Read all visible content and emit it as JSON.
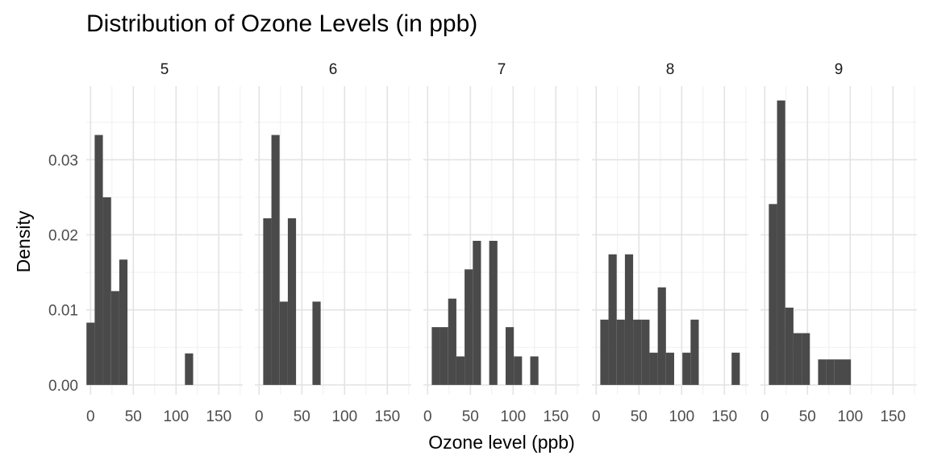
{
  "chart_data": {
    "type": "bar",
    "title": "Distribution of Ozone Levels (in ppb)",
    "xlabel": "Ozone level (ppb)",
    "ylabel": "Density",
    "xlim": [
      -5,
      178
    ],
    "ylim": [
      -0.0013,
      0.0398
    ],
    "x_ticks": [
      0,
      50,
      100,
      150
    ],
    "y_ticks": [
      0.0,
      0.01,
      0.02,
      0.03
    ],
    "y_tick_labels": [
      "0.00",
      "0.01",
      "0.02",
      "0.03"
    ],
    "bin_width": 9.6,
    "grid": true,
    "bar_color": "#4a4a4a",
    "panels": [
      {
        "label": "5",
        "bins": [
          {
            "x0": -4.8,
            "density": 0.0083
          },
          {
            "x0": 4.8,
            "density": 0.0333
          },
          {
            "x0": 14.4,
            "density": 0.025
          },
          {
            "x0": 24.0,
            "density": 0.0125
          },
          {
            "x0": 33.6,
            "density": 0.0167
          },
          {
            "x0": 110.4,
            "density": 0.0042
          }
        ]
      },
      {
        "label": "6",
        "bins": [
          {
            "x0": 4.8,
            "density": 0.0222
          },
          {
            "x0": 14.4,
            "density": 0.0333
          },
          {
            "x0": 24.0,
            "density": 0.0111
          },
          {
            "x0": 33.6,
            "density": 0.0222
          },
          {
            "x0": 62.4,
            "density": 0.0111
          }
        ]
      },
      {
        "label": "7",
        "bins": [
          {
            "x0": 4.8,
            "density": 0.0077
          },
          {
            "x0": 14.4,
            "density": 0.0077
          },
          {
            "x0": 24.0,
            "density": 0.0115
          },
          {
            "x0": 33.6,
            "density": 0.0038
          },
          {
            "x0": 43.2,
            "density": 0.0154
          },
          {
            "x0": 52.8,
            "density": 0.0192
          },
          {
            "x0": 72.0,
            "density": 0.0192
          },
          {
            "x0": 91.2,
            "density": 0.0077
          },
          {
            "x0": 100.8,
            "density": 0.0038
          },
          {
            "x0": 120.0,
            "density": 0.0038
          }
        ]
      },
      {
        "label": "8",
        "bins": [
          {
            "x0": 4.8,
            "density": 0.0087
          },
          {
            "x0": 14.4,
            "density": 0.0174
          },
          {
            "x0": 24.0,
            "density": 0.0087
          },
          {
            "x0": 33.6,
            "density": 0.0174
          },
          {
            "x0": 43.2,
            "density": 0.0087
          },
          {
            "x0": 52.8,
            "density": 0.0087
          },
          {
            "x0": 62.4,
            "density": 0.0043
          },
          {
            "x0": 72.0,
            "density": 0.013
          },
          {
            "x0": 81.6,
            "density": 0.0043
          },
          {
            "x0": 100.8,
            "density": 0.0043
          },
          {
            "x0": 110.4,
            "density": 0.0087
          },
          {
            "x0": 158.4,
            "density": 0.0043
          }
        ]
      },
      {
        "label": "9",
        "bins": [
          {
            "x0": 4.8,
            "density": 0.0241
          },
          {
            "x0": 14.4,
            "density": 0.0379
          },
          {
            "x0": 24.0,
            "density": 0.0103
          },
          {
            "x0": 33.6,
            "density": 0.0069
          },
          {
            "x0": 43.2,
            "density": 0.0069
          },
          {
            "x0": 62.4,
            "density": 0.0034
          },
          {
            "x0": 72.0,
            "density": 0.0034
          },
          {
            "x0": 81.6,
            "density": 0.0034
          },
          {
            "x0": 91.2,
            "density": 0.0034
          }
        ]
      }
    ]
  }
}
